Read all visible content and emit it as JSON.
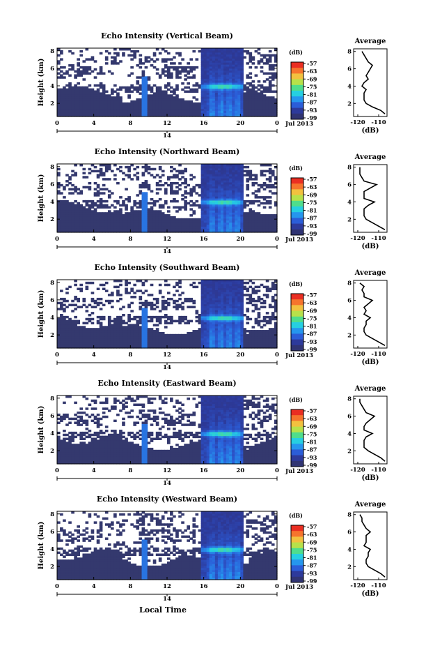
{
  "figure": {
    "x_axis_title": "Local Time",
    "date_label": "Jul 2013",
    "day_label": "14",
    "colorbar_title": "(dB)",
    "colorbar_ticks": [
      "-57",
      "-63",
      "-69",
      "-75",
      "-81",
      "-87",
      "-93",
      "-99"
    ],
    "colorbar_colors": [
      "#ea2e22",
      "#f6742d",
      "#f2c13f",
      "#b7e14a",
      "#4fdd8c",
      "#26cfe1",
      "#2596ee",
      "#2b5dd8",
      "#2d3a9b",
      "#303473"
    ],
    "empty_color": "#ffffff",
    "base_color": "#34396e"
  },
  "chart_data": [
    {
      "type": "heatmap",
      "title": "Echo Intensity (Vertical Beam)",
      "xlabel": "Local Time",
      "ylabel": "Height (km)",
      "x_ticks": [
        "0",
        "4",
        "8",
        "12",
        "16",
        "20",
        "0"
      ],
      "xlim": [
        0,
        24
      ],
      "y_ticks": [
        "8",
        "6",
        "4",
        "2"
      ],
      "ylim": [
        0.5,
        8.3
      ],
      "colorbar": {
        "label": "(dB)",
        "ticks": [
          -57,
          -63,
          -69,
          -75,
          -81,
          -87,
          -93,
          -99
        ]
      },
      "average_profile": {
        "title": "Average",
        "xlabel": "(dB)",
        "xlim": [
          -122,
          -106
        ],
        "x_ticks": [
          "-120",
          "-110"
        ],
        "y_ticks": [
          "8",
          "6",
          "4",
          "2"
        ],
        "height_km": [
          0.8,
          1.2,
          1.6,
          2.0,
          2.4,
          2.8,
          3.2,
          3.6,
          4.0,
          4.4,
          4.8,
          5.2,
          5.6,
          6.0,
          6.4,
          6.8,
          7.2,
          7.6,
          8.0
        ],
        "value_db": [
          -107,
          -109,
          -113,
          -116,
          -117,
          -117,
          -117,
          -116,
          -118,
          -117,
          -115,
          -116,
          -115,
          -114,
          -113,
          -115,
          -116,
          -117,
          -118
        ]
      }
    },
    {
      "type": "heatmap",
      "title": "Echo Intensity (Northward Beam)",
      "xlabel": "Local Time",
      "ylabel": "Height (km)",
      "x_ticks": [
        "0",
        "4",
        "8",
        "12",
        "16",
        "20",
        "0"
      ],
      "xlim": [
        0,
        24
      ],
      "y_ticks": [
        "8",
        "6",
        "4",
        "2"
      ],
      "ylim": [
        0.5,
        8.3
      ],
      "colorbar": {
        "label": "(dB)",
        "ticks": [
          -57,
          -63,
          -69,
          -75,
          -81,
          -87,
          -93,
          -99
        ]
      },
      "average_profile": {
        "title": "Average",
        "xlabel": "(dB)",
        "xlim": [
          -122,
          -106
        ],
        "x_ticks": [
          "-120",
          "-110"
        ],
        "y_ticks": [
          "8",
          "6",
          "4",
          "2"
        ],
        "height_km": [
          0.8,
          1.2,
          1.6,
          2.0,
          2.4,
          2.8,
          3.2,
          3.6,
          4.0,
          4.4,
          4.8,
          5.2,
          5.6,
          6.0,
          6.4,
          6.8,
          7.2,
          7.6,
          8.0
        ],
        "value_db": [
          -107,
          -110,
          -113,
          -116,
          -117,
          -117,
          -117,
          -115,
          -112,
          -117,
          -117,
          -117,
          -114,
          -111,
          -117,
          -118,
          -119,
          -119,
          -119
        ]
      }
    },
    {
      "type": "heatmap",
      "title": "Echo Intensity (Southward Beam)",
      "xlabel": "Local Time",
      "ylabel": "Height (km)",
      "x_ticks": [
        "0",
        "4",
        "8",
        "12",
        "16",
        "20",
        "0"
      ],
      "xlim": [
        0,
        24
      ],
      "y_ticks": [
        "8",
        "6",
        "4",
        "2"
      ],
      "ylim": [
        0.5,
        8.3
      ],
      "colorbar": {
        "label": "(dB)",
        "ticks": [
          -57,
          -63,
          -69,
          -75,
          -81,
          -87,
          -93,
          -99
        ]
      },
      "average_profile": {
        "title": "Average",
        "xlabel": "(dB)",
        "xlim": [
          -122,
          -106
        ],
        "x_ticks": [
          "-120",
          "-110"
        ],
        "y_ticks": [
          "8",
          "6",
          "4",
          "2"
        ],
        "height_km": [
          0.8,
          1.2,
          1.6,
          2.0,
          2.4,
          2.8,
          3.2,
          3.6,
          4.0,
          4.4,
          4.8,
          5.2,
          5.6,
          6.0,
          6.4,
          6.8,
          7.2,
          7.6,
          8.0
        ],
        "value_db": [
          -107,
          -110,
          -113,
          -116,
          -117,
          -117,
          -116,
          -116,
          -114,
          -117,
          -116,
          -117,
          -115,
          -113,
          -117,
          -117,
          -118,
          -117,
          -119
        ]
      }
    },
    {
      "type": "heatmap",
      "title": "Echo Intensity (Eastward Beam)",
      "xlabel": "Local Time",
      "ylabel": "Height (km)",
      "x_ticks": [
        "0",
        "4",
        "8",
        "12",
        "16",
        "20",
        "0"
      ],
      "xlim": [
        0,
        24
      ],
      "y_ticks": [
        "8",
        "6",
        "4",
        "2"
      ],
      "ylim": [
        0.5,
        8.3
      ],
      "colorbar": {
        "label": "(dB)",
        "ticks": [
          -57,
          -63,
          -69,
          -75,
          -81,
          -87,
          -93,
          -99
        ]
      },
      "average_profile": {
        "title": "Average",
        "xlabel": "(dB)",
        "xlim": [
          -122,
          -106
        ],
        "x_ticks": [
          "-120",
          "-110"
        ],
        "y_ticks": [
          "8",
          "6",
          "4",
          "2"
        ],
        "height_km": [
          0.8,
          1.2,
          1.6,
          2.0,
          2.4,
          2.8,
          3.2,
          3.6,
          4.0,
          4.4,
          4.8,
          5.2,
          5.6,
          6.0,
          6.4,
          6.8,
          7.2,
          7.6,
          8.0
        ],
        "value_db": [
          -107,
          -109,
          -112,
          -115,
          -117,
          -117,
          -117,
          -116,
          -113,
          -117,
          -117,
          -116,
          -114,
          -112,
          -116,
          -117,
          -118,
          -119,
          -119
        ]
      }
    },
    {
      "type": "heatmap",
      "title": "Echo Intensity (Westward Beam)",
      "xlabel": "Local Time",
      "ylabel": "Height (km)",
      "x_ticks": [
        "0",
        "4",
        "8",
        "12",
        "16",
        "20",
        "0"
      ],
      "xlim": [
        0,
        24
      ],
      "y_ticks": [
        "8",
        "6",
        "4",
        "2"
      ],
      "ylim": [
        0.5,
        8.3
      ],
      "colorbar": {
        "label": "(dB)",
        "ticks": [
          -57,
          -63,
          -69,
          -75,
          -81,
          -87,
          -93,
          -99
        ]
      },
      "average_profile": {
        "title": "Average",
        "xlabel": "(dB)",
        "xlim": [
          -122,
          -106
        ],
        "x_ticks": [
          "-120",
          "-110"
        ],
        "y_ticks": [
          "8",
          "6",
          "4",
          "2"
        ],
        "height_km": [
          0.8,
          1.2,
          1.6,
          2.0,
          2.4,
          2.8,
          3.2,
          3.6,
          4.0,
          4.4,
          4.8,
          5.2,
          5.6,
          6.0,
          6.4,
          6.8,
          7.2,
          7.6,
          8.0
        ],
        "value_db": [
          -107,
          -109,
          -112,
          -115,
          -116,
          -116,
          -115,
          -115,
          -114,
          -117,
          -116,
          -116,
          -116,
          -114,
          -116,
          -117,
          -118,
          -118,
          -119
        ]
      }
    }
  ]
}
